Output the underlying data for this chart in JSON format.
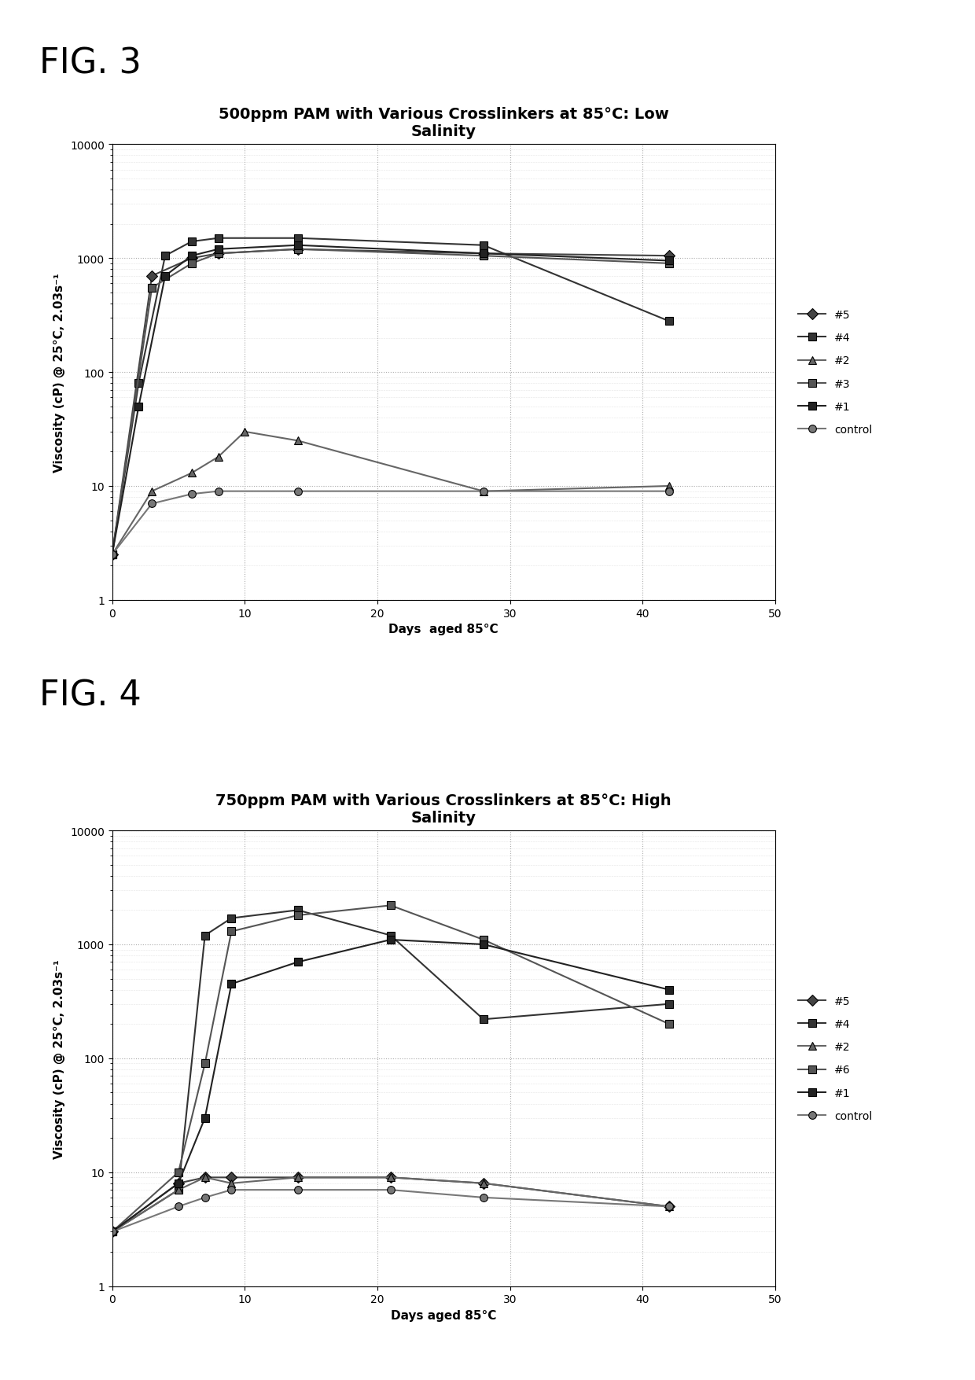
{
  "fig3": {
    "title": "500ppm PAM with Various Crosslinkers at 85°C: Low\nSalinity",
    "xlabel": "Days  aged 85°C",
    "ylabel": "Viscosity (cP) @ 25°C, 2.03s⁻¹",
    "xlim": [
      0,
      50
    ],
    "ylim": [
      1,
      10000
    ],
    "series": [
      {
        "label": "#5",
        "marker": "D",
        "color": "#444444",
        "x": [
          0,
          3,
          6,
          8,
          14,
          28,
          42
        ],
        "y": [
          2.5,
          700,
          1000,
          1100,
          1200,
          1100,
          1050
        ]
      },
      {
        "label": "#4",
        "marker": "s",
        "color": "#333333",
        "x": [
          0,
          2,
          4,
          6,
          8,
          14,
          28,
          42
        ],
        "y": [
          2.5,
          80,
          1050,
          1400,
          1500,
          1500,
          1300,
          280
        ]
      },
      {
        "label": "#2",
        "marker": "^",
        "color": "#666666",
        "x": [
          0,
          3,
          6,
          8,
          10,
          14,
          28,
          42
        ],
        "y": [
          2.5,
          9,
          13,
          18,
          30,
          25,
          9,
          10
        ]
      },
      {
        "label": "#3",
        "marker": "s",
        "color": "#555555",
        "x": [
          0,
          3,
          6,
          8,
          14,
          28,
          42
        ],
        "y": [
          2.5,
          550,
          900,
          1100,
          1200,
          1050,
          900
        ]
      },
      {
        "label": "#1",
        "marker": "s",
        "color": "#222222",
        "x": [
          0,
          2,
          4,
          6,
          8,
          14,
          28,
          42
        ],
        "y": [
          2.5,
          50,
          700,
          1050,
          1200,
          1300,
          1100,
          950
        ]
      },
      {
        "label": "control",
        "marker": "o",
        "color": "#777777",
        "x": [
          0,
          3,
          6,
          8,
          14,
          28,
          42
        ],
        "y": [
          2.5,
          7,
          8.5,
          9,
          9,
          9,
          9
        ]
      }
    ]
  },
  "fig4": {
    "title": "750ppm PAM with Various Crosslinkers at 85°C: High\nSalinity",
    "xlabel": "Days aged 85°C",
    "ylabel": "Viscosity (cP) @ 25°C, 2.03s⁻¹",
    "xlim": [
      0,
      50
    ],
    "ylim": [
      1,
      10000
    ],
    "series": [
      {
        "label": "#5",
        "marker": "D",
        "color": "#444444",
        "x": [
          0,
          5,
          7,
          9,
          14,
          21,
          28,
          42
        ],
        "y": [
          3,
          8,
          9,
          9,
          9,
          9,
          8,
          5
        ]
      },
      {
        "label": "#4",
        "marker": "s",
        "color": "#333333",
        "x": [
          0,
          5,
          7,
          9,
          14,
          21,
          28,
          42
        ],
        "y": [
          3,
          7,
          1200,
          1700,
          2000,
          1200,
          220,
          300
        ]
      },
      {
        "label": "#2",
        "marker": "^",
        "color": "#666666",
        "x": [
          0,
          5,
          7,
          9,
          14,
          21,
          28,
          42
        ],
        "y": [
          3,
          7,
          9,
          8,
          9,
          9,
          8,
          5
        ]
      },
      {
        "label": "#6",
        "marker": "s",
        "color": "#555555",
        "x": [
          0,
          5,
          7,
          9,
          14,
          21,
          28,
          42
        ],
        "y": [
          3,
          10,
          90,
          1300,
          1800,
          2200,
          1100,
          200
        ]
      },
      {
        "label": "#1",
        "marker": "s",
        "color": "#222222",
        "x": [
          0,
          5,
          7,
          9,
          14,
          21,
          28,
          42
        ],
        "y": [
          3,
          8,
          30,
          450,
          700,
          1100,
          1000,
          400
        ]
      },
      {
        "label": "control",
        "marker": "o",
        "color": "#777777",
        "x": [
          0,
          5,
          7,
          9,
          14,
          21,
          28,
          42
        ],
        "y": [
          3,
          5,
          6,
          7,
          7,
          7,
          6,
          5
        ]
      }
    ]
  },
  "fig_label_fontsize": 32,
  "title_fontsize": 14,
  "axis_label_fontsize": 11,
  "tick_fontsize": 10,
  "legend_fontsize": 10,
  "background_color": "#ffffff",
  "fig3_label": "FIG. 3",
  "fig4_label": "FIG. 4"
}
